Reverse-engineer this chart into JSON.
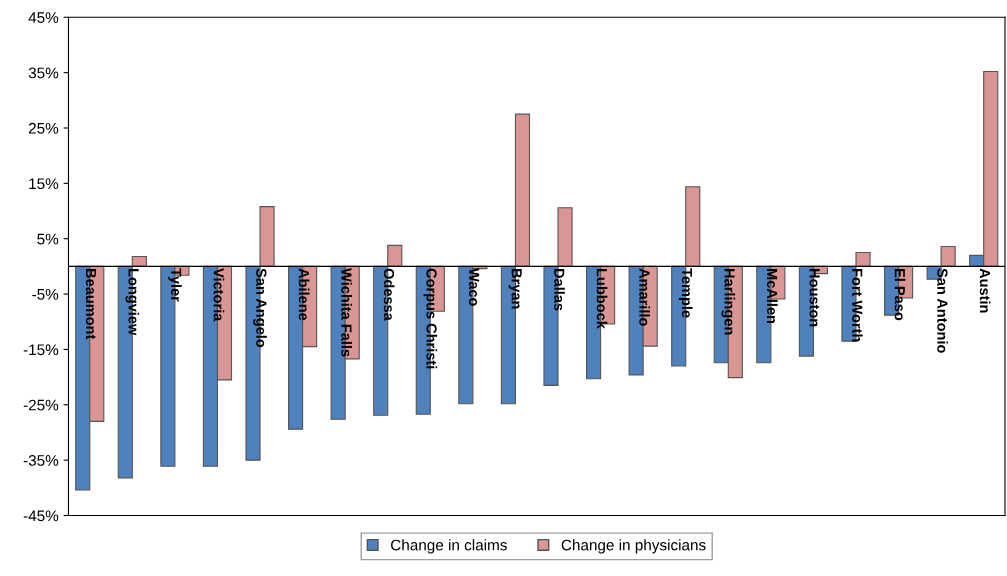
{
  "chart_data": {
    "type": "bar",
    "categories": [
      "Beaumont",
      "Longview",
      "Tyler",
      "Victoria",
      "San Angelo",
      "Abilene",
      "Wichita Falls",
      "Odessa",
      "Corpus Christi",
      "Waco",
      "Bryan",
      "Dallas",
      "Lubbock",
      "Amarillo",
      "Temple",
      "Harlingen",
      "McAllen",
      "Houston",
      "Fort Worth",
      "El Paso",
      "San Antonio",
      "Austin"
    ],
    "series": [
      {
        "name": "Change in claims",
        "color": "#4f81bd",
        "values": [
          -40.4,
          -38.2,
          -36.1,
          -36.1,
          -35.0,
          -29.4,
          -27.6,
          -26.9,
          -26.7,
          -24.8,
          -24.8,
          -21.5,
          -20.3,
          -19.6,
          -18.0,
          -17.4,
          -17.4,
          -16.2,
          -13.5,
          -8.8,
          -2.3,
          2.0
        ]
      },
      {
        "name": "Change in physicians",
        "color": "#d99694",
        "values": [
          -28.0,
          1.8,
          -1.6,
          -20.5,
          10.8,
          -14.5,
          -16.7,
          3.8,
          -8.1,
          -0.4,
          27.5,
          10.6,
          -10.4,
          -14.4,
          14.4,
          -20.1,
          -5.9,
          -1.3,
          2.5,
          -5.7,
          3.6,
          35.2
        ]
      }
    ],
    "ylim": [
      -45,
      45
    ],
    "yticks": [
      {
        "value": -45,
        "label": "-45%"
      },
      {
        "value": -35,
        "label": "-35%"
      },
      {
        "value": -25,
        "label": "-25%"
      },
      {
        "value": -15,
        "label": "-15%"
      },
      {
        "value": -5,
        "label": "-5%"
      },
      {
        "value": 5,
        "label": "5%"
      },
      {
        "value": 15,
        "label": "15%"
      },
      {
        "value": 25,
        "label": "25%"
      },
      {
        "value": 35,
        "label": "35%"
      },
      {
        "value": 45,
        "label": "45%"
      }
    ],
    "grid": false,
    "legend": "bottom"
  }
}
